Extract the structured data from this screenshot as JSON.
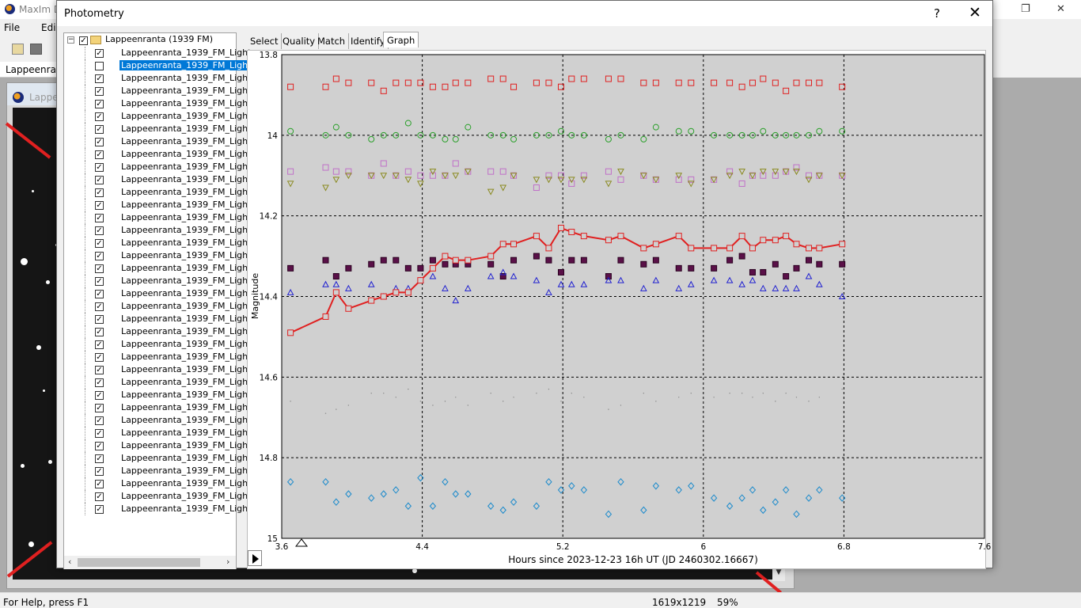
{
  "app": {
    "title": "MaxIm D"
  },
  "menu": {
    "file": "File",
    "edit": "Edi"
  },
  "document_tab": "Lappeenrar",
  "image_window": {
    "title": "Lappe"
  },
  "status": {
    "help": "For Help, press F1",
    "size": "1619x1219",
    "zoom": "59%"
  },
  "dialog": {
    "title": "Photometry",
    "help": "?",
    "close": "✕"
  },
  "tree": {
    "root": "Lappeenranta (1939 FM)",
    "item_label": "Lappeenranta_1939_FM_Light",
    "items": [
      {
        "label": "Lappeenranta_1939_FM_Light",
        "checked": true
      },
      {
        "label": "Lappeenranta_1939_FM_Light",
        "checked": false,
        "selected": true
      },
      {
        "label": "Lappeenranta_1939_FM_Light",
        "checked": true
      },
      {
        "label": "Lappeenranta_1939_FM_Light",
        "checked": true
      },
      {
        "label": "Lappeenranta_1939_FM_Light",
        "checked": true
      },
      {
        "label": "Lappeenranta_1939_FM_Light",
        "checked": true
      },
      {
        "label": "Lappeenranta_1939_FM_Light",
        "checked": true
      },
      {
        "label": "Lappeenranta_1939_FM_Light",
        "checked": true
      },
      {
        "label": "Lappeenranta_1939_FM_Light",
        "checked": true
      },
      {
        "label": "Lappeenranta_1939_FM_Light",
        "checked": true
      },
      {
        "label": "Lappeenranta_1939_FM_Light",
        "checked": true
      },
      {
        "label": "Lappeenranta_1939_FM_Light",
        "checked": true
      },
      {
        "label": "Lappeenranta_1939_FM_Light",
        "checked": true
      },
      {
        "label": "Lappeenranta_1939_FM_Light",
        "checked": true
      },
      {
        "label": "Lappeenranta_1939_FM_Light",
        "checked": true
      },
      {
        "label": "Lappeenranta_1939_FM_Light",
        "checked": true
      },
      {
        "label": "Lappeenranta_1939_FM_Light",
        "checked": true
      },
      {
        "label": "Lappeenranta_1939_FM_Light",
        "checked": true
      },
      {
        "label": "Lappeenranta_1939_FM_Light",
        "checked": true
      },
      {
        "label": "Lappeenranta_1939_FM_Light",
        "checked": true
      },
      {
        "label": "Lappeenranta_1939_FM_Light",
        "checked": true
      },
      {
        "label": "Lappeenranta_1939_FM_Light",
        "checked": true
      },
      {
        "label": "Lappeenranta_1939_FM_Light",
        "checked": true
      },
      {
        "label": "Lappeenranta_1939_FM_Light",
        "checked": true
      },
      {
        "label": "Lappeenranta_1939_FM_Light",
        "checked": true
      },
      {
        "label": "Lappeenranta_1939_FM_Light",
        "checked": true
      },
      {
        "label": "Lappeenranta_1939_FM_Light",
        "checked": true
      },
      {
        "label": "Lappeenranta_1939_FM_Light",
        "checked": true
      },
      {
        "label": "Lappeenranta_1939_FM_Light",
        "checked": true
      },
      {
        "label": "Lappeenranta_1939_FM_Light",
        "checked": true
      },
      {
        "label": "Lappeenranta_1939_FM_Light",
        "checked": true
      },
      {
        "label": "Lappeenranta_1939_FM_Light",
        "checked": true
      },
      {
        "label": "Lappeenranta_1939_FM_Light",
        "checked": true
      },
      {
        "label": "Lappeenranta_1939_FM_Light",
        "checked": true
      },
      {
        "label": "Lappeenranta_1939_FM_Light",
        "checked": true
      },
      {
        "label": "Lappeenranta_1939_FM_Light",
        "checked": true
      },
      {
        "label": "Lappeenranta_1939_FM_Light",
        "checked": true
      }
    ]
  },
  "tabs": [
    {
      "label": "Select"
    },
    {
      "label": "Quality"
    },
    {
      "label": "Match"
    },
    {
      "label": "Identify"
    },
    {
      "label": "Graph",
      "active": true
    }
  ],
  "chart_data": {
    "type": "scatter",
    "xlabel": "Hours since 2023-12-23 16h UT (JD 2460302.16667)",
    "ylabel": "Magnitude",
    "xlim": [
      3.6,
      7.6
    ],
    "ylim": [
      13.8,
      15.0
    ],
    "y_inverted": true,
    "xticks": [
      "3.6",
      "4.4",
      "5.2",
      "6",
      "6.8",
      "7.6"
    ],
    "yticks": [
      "13.8",
      "14",
      "14.2",
      "14.4",
      "14.6",
      "14.8",
      "15"
    ],
    "grid": true,
    "x": [
      3.65,
      3.85,
      3.91,
      3.98,
      4.11,
      4.18,
      4.25,
      4.32,
      4.39,
      4.46,
      4.53,
      4.59,
      4.66,
      4.79,
      4.86,
      4.92,
      5.05,
      5.12,
      5.19,
      5.25,
      5.32,
      5.46,
      5.53,
      5.66,
      5.73,
      5.86,
      5.93,
      6.06,
      6.15,
      6.22,
      6.28,
      6.34,
      6.41,
      6.47,
      6.53,
      6.6,
      6.66,
      6.79
    ],
    "series": [
      {
        "marker": "square",
        "color": "#e02020",
        "filled": false,
        "values": [
          13.88,
          13.88,
          13.86,
          13.87,
          13.87,
          13.89,
          13.87,
          13.87,
          13.87,
          13.88,
          13.88,
          13.87,
          13.87,
          13.86,
          13.86,
          13.88,
          13.87,
          13.87,
          13.88,
          13.86,
          13.86,
          13.86,
          13.86,
          13.87,
          13.87,
          13.87,
          13.87,
          13.87,
          13.87,
          13.88,
          13.87,
          13.86,
          13.87,
          13.89,
          13.87,
          13.87,
          13.87,
          13.88
        ]
      },
      {
        "marker": "circle",
        "color": "#2aa02a",
        "filled": false,
        "values": [
          13.99,
          14.0,
          13.98,
          14.0,
          14.01,
          14.0,
          14.0,
          13.97,
          14.0,
          14.0,
          14.01,
          14.01,
          13.98,
          14.0,
          14.0,
          14.01,
          14.0,
          14.0,
          13.99,
          14.0,
          14.0,
          14.01,
          14.0,
          14.01,
          13.98,
          13.99,
          13.99,
          14.0,
          14.0,
          14.0,
          14.0,
          13.99,
          14.0,
          14.0,
          14.0,
          14.0,
          13.99,
          13.99
        ]
      },
      {
        "marker": "square",
        "color": "#c070c8",
        "filled": false,
        "values": [
          14.09,
          14.08,
          14.09,
          14.09,
          14.1,
          14.07,
          14.1,
          14.09,
          14.1,
          14.1,
          14.1,
          14.07,
          14.09,
          14.09,
          14.09,
          14.1,
          14.13,
          14.1,
          14.1,
          14.12,
          14.1,
          14.09,
          14.11,
          14.1,
          14.11,
          14.11,
          14.11,
          14.11,
          14.09,
          14.12,
          14.1,
          14.1,
          14.1,
          14.09,
          14.08,
          14.1,
          14.1,
          14.1
        ]
      },
      {
        "marker": "triangle-down",
        "color": "#8a8a20",
        "filled": false,
        "values": [
          14.12,
          14.13,
          14.11,
          14.1,
          14.1,
          14.1,
          14.1,
          14.11,
          14.12,
          14.09,
          14.1,
          14.1,
          14.09,
          14.14,
          14.13,
          14.1,
          14.11,
          14.11,
          14.11,
          14.11,
          14.11,
          14.12,
          14.09,
          14.1,
          14.11,
          14.1,
          14.12,
          14.11,
          14.1,
          14.09,
          14.1,
          14.09,
          14.09,
          14.09,
          14.09,
          14.11,
          14.1,
          14.1
        ]
      },
      {
        "marker": "square-filled",
        "color": "#5a1048",
        "filled": true,
        "values": [
          14.33,
          14.31,
          14.35,
          14.33,
          14.32,
          14.31,
          14.31,
          14.33,
          14.33,
          14.31,
          14.32,
          14.32,
          14.32,
          14.32,
          14.35,
          14.31,
          14.3,
          14.31,
          14.34,
          14.31,
          14.31,
          14.35,
          14.31,
          14.32,
          14.31,
          14.33,
          14.33,
          14.33,
          14.31,
          14.3,
          14.34,
          14.34,
          14.32,
          14.35,
          14.33,
          14.31,
          14.32,
          14.32
        ]
      },
      {
        "marker": "triangle-up",
        "color": "#2020d0",
        "filled": false,
        "values": [
          14.39,
          14.37,
          14.37,
          14.38,
          14.37,
          14.4,
          14.38,
          14.38,
          14.36,
          14.35,
          14.38,
          14.41,
          14.38,
          14.35,
          14.34,
          14.35,
          14.36,
          14.39,
          14.37,
          14.37,
          14.37,
          14.36,
          14.36,
          14.38,
          14.36,
          14.38,
          14.37,
          14.36,
          14.36,
          14.37,
          14.36,
          14.38,
          14.38,
          14.38,
          14.38,
          14.35,
          14.37,
          14.4
        ]
      },
      {
        "marker": "square-line",
        "color": "#e02020",
        "filled": false,
        "line": true,
        "values": [
          14.49,
          14.45,
          14.39,
          14.43,
          14.41,
          14.4,
          14.39,
          14.39,
          14.36,
          14.33,
          14.3,
          14.31,
          14.31,
          14.3,
          14.27,
          14.27,
          14.25,
          14.28,
          14.23,
          14.24,
          14.25,
          14.26,
          14.25,
          14.28,
          14.27,
          14.25,
          14.28,
          14.28,
          14.28,
          14.25,
          14.28,
          14.26,
          14.26,
          14.25,
          14.27,
          14.28,
          14.28,
          14.27
        ]
      },
      {
        "marker": "dot",
        "color": "#888888",
        "filled": true,
        "values": [
          14.66,
          14.69,
          14.68,
          14.67,
          14.64,
          14.64,
          14.65,
          14.63,
          14.66,
          14.67,
          14.66,
          14.65,
          14.67,
          14.64,
          14.66,
          14.65,
          14.64,
          14.63,
          14.66,
          14.64,
          14.65,
          14.68,
          14.67,
          14.64,
          14.66,
          14.65,
          14.64,
          14.65,
          14.64,
          14.64,
          14.65,
          14.64,
          14.66,
          14.64,
          14.65,
          14.66,
          14.65,
          14.63
        ]
      },
      {
        "marker": "diamond",
        "color": "#1a8acc",
        "filled": false,
        "values": [
          14.86,
          14.86,
          14.91,
          14.89,
          14.9,
          14.89,
          14.88,
          14.92,
          14.85,
          14.92,
          14.86,
          14.89,
          14.89,
          14.92,
          14.93,
          14.91,
          14.92,
          14.86,
          14.88,
          14.87,
          14.88,
          14.94,
          14.86,
          14.93,
          14.87,
          14.88,
          14.87,
          14.9,
          14.92,
          14.9,
          14.88,
          14.93,
          14.91,
          14.88,
          14.94,
          14.9,
          14.88,
          14.9
        ]
      }
    ]
  }
}
